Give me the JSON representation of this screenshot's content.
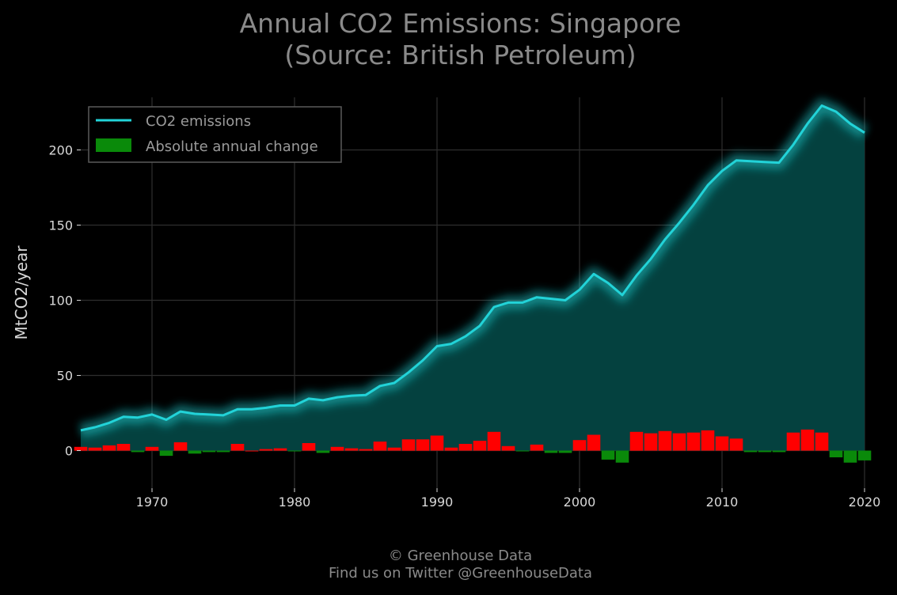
{
  "header": {
    "title_line1": "Annual CO2 Emissions: Singapore",
    "title_line2": "(Source: British Petroleum)"
  },
  "footer": {
    "credit_line1": "© Greenhouse Data",
    "credit_line2": "Find us on Twitter @GreenhouseData"
  },
  "colors": {
    "background": "#000000",
    "line": "#22d3d8",
    "area": "#04413f",
    "increase": "#ff0000",
    "decrease": "#0a8a0a",
    "grid": "#2e2e2e"
  },
  "chart_data": {
    "type": "line",
    "title": "Annual CO2 Emissions: Singapore (Source: British Petroleum)",
    "ylabel": "MtCO2/year",
    "xlabel": "",
    "xlim": [
      1965,
      2020
    ],
    "ylim": [
      -25,
      235
    ],
    "x_ticks": [
      1970,
      1980,
      1990,
      2000,
      2010,
      2020
    ],
    "y_ticks": [
      0,
      50,
      100,
      150,
      200
    ],
    "grid": true,
    "legend_position": "top-left",
    "x": [
      1965,
      1966,
      1967,
      1968,
      1969,
      1970,
      1971,
      1972,
      1973,
      1974,
      1975,
      1976,
      1977,
      1978,
      1979,
      1980,
      1981,
      1982,
      1983,
      1984,
      1985,
      1986,
      1987,
      1988,
      1989,
      1990,
      1991,
      1992,
      1993,
      1994,
      1995,
      1996,
      1997,
      1998,
      1999,
      2000,
      2001,
      2002,
      2003,
      2004,
      2005,
      2006,
      2007,
      2008,
      2009,
      2010,
      2011,
      2012,
      2013,
      2014,
      2015,
      2016,
      2017,
      2018,
      2019,
      2020
    ],
    "series": [
      {
        "name": "CO2 emissions",
        "kind": "line_area",
        "values": [
          13.5,
          15.5,
          18.5,
          22.5,
          22,
          24,
          20.5,
          26,
          24.5,
          24,
          23.5,
          27.5,
          27.5,
          28.5,
          30,
          30,
          34.5,
          33.5,
          35.5,
          36.5,
          37,
          43,
          45,
          52,
          60,
          69.5,
          71,
          76,
          83,
          95.5,
          98.5,
          98.5,
          102,
          101,
          100,
          107,
          117.5,
          111.5,
          103.5,
          116.5,
          127.5,
          140.5,
          151.5,
          163.5,
          176.5,
          186,
          193,
          192.5,
          192,
          191.5,
          203.5,
          217.5,
          229.5,
          225.5,
          217.5,
          211.5
        ]
      },
      {
        "name": "Absolute annual change",
        "kind": "bar",
        "values": [
          2.5,
          2,
          3.5,
          4.5,
          -1,
          2.5,
          -3.5,
          5.5,
          -2,
          -1,
          -1,
          4.5,
          0,
          1,
          1.5,
          -0.5,
          5,
          -1.5,
          2.5,
          1.5,
          1,
          6,
          2,
          7.5,
          7.5,
          10,
          2,
          4.5,
          6.5,
          12.5,
          3,
          -0.5,
          4,
          -1.5,
          -1.5,
          7,
          10.5,
          -6,
          -8,
          12.5,
          11.5,
          13,
          11.5,
          12,
          13.5,
          9.5,
          8,
          -1,
          -1,
          -1,
          12,
          14,
          12,
          -4.5,
          -8,
          -6.5
        ]
      }
    ]
  }
}
